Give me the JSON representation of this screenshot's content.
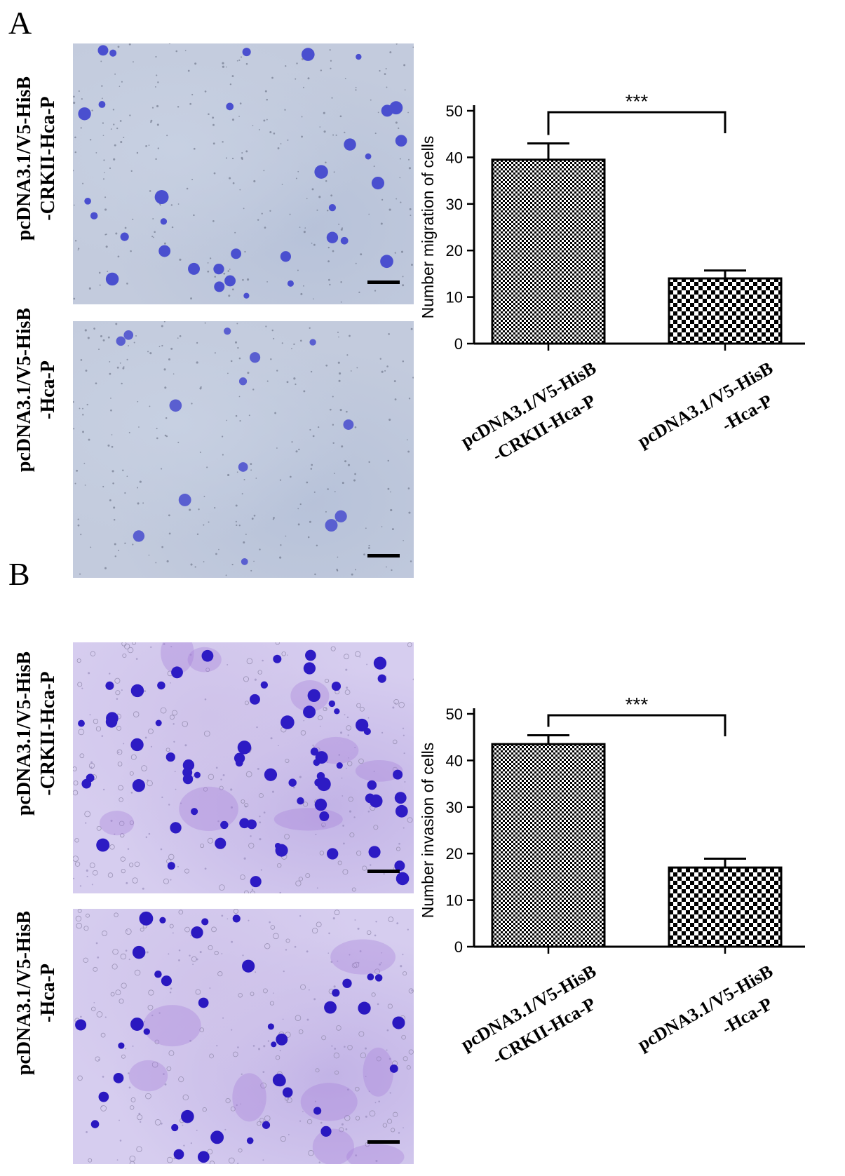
{
  "panels": [
    {
      "letter": "A",
      "image_labels": [
        {
          "line1": "pcDNA3.1/V5-HisB",
          "line2": "-CRKII-Hca-P"
        },
        {
          "line1": "pcDNA3.1/V5-HisB",
          "line2": "-Hca-P"
        }
      ]
    },
    {
      "letter": "B",
      "image_labels": [
        {
          "line1": "pcDNA3.1/V5-HisB",
          "line2": "-CRKII-Hca-P"
        },
        {
          "line1": "pcDNA3.1/V5-HisB",
          "line2": "-Hca-P"
        }
      ]
    }
  ],
  "chart_data": [
    {
      "type": "bar",
      "panel": "A",
      "categories": [
        {
          "line1": "pcDNA3.1/V5-HisB",
          "line2": "-CRKII-Hca-P"
        },
        {
          "line1": "pcDNA3.1/V5-HisB",
          "line2": "-Hca-P"
        }
      ],
      "values": [
        39.5,
        14
      ],
      "errors": [
        3.5,
        1.7
      ],
      "ylabel": "Number migration of  cells",
      "ylim": [
        0,
        50
      ],
      "yticks": [
        "0",
        "10",
        "20",
        "30",
        "40",
        "50"
      ],
      "significance": "***",
      "colors": {
        "bar_fill": "#8f8f8f",
        "bar_stroke": "#000000"
      }
    },
    {
      "type": "bar",
      "panel": "B",
      "categories": [
        {
          "line1": "pcDNA3.1/V5-HisB",
          "line2": "-CRKII-Hca-P"
        },
        {
          "line1": "pcDNA3.1/V5-HisB",
          "line2": "-Hca-P"
        }
      ],
      "values": [
        43.5,
        17
      ],
      "errors": [
        1.9,
        1.9
      ],
      "ylabel": "Number invasion of  cells",
      "ylim": [
        0,
        50
      ],
      "yticks": [
        "0",
        "10",
        "20",
        "30",
        "40",
        "50"
      ],
      "significance": "***",
      "colors": {
        "bar_fill": "#8f8f8f",
        "bar_stroke": "#000000"
      }
    }
  ]
}
